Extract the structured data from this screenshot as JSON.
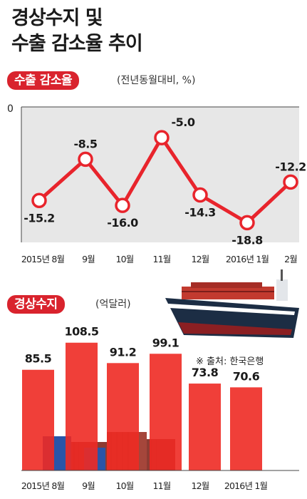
{
  "title_lines": [
    "경상수지 및",
    "수출 감소율 추이"
  ],
  "chart_data": [
    {
      "type": "line",
      "title": "수출 감소율",
      "unit": "(전년동월대비, %)",
      "categories": [
        "2015년 8월",
        "9월",
        "10월",
        "11월",
        "12월",
        "2016년 1월",
        "2월"
      ],
      "values": [
        -15.2,
        -8.5,
        -16.0,
        -5.0,
        -14.3,
        -18.8,
        -12.2
      ],
      "labels": [
        "-15.2",
        "-8.5",
        "-16.0",
        "-5.0",
        "-14.3",
        "-18.8",
        "-12.2"
      ],
      "y_zero_label": "0",
      "ylim": [
        -22,
        0
      ],
      "line_color": "#e8242c",
      "marker_color": "#ffffff"
    },
    {
      "type": "bar",
      "title": "경상수지",
      "unit": "(억달러)",
      "categories": [
        "2015년 8월",
        "9월",
        "10월",
        "11월",
        "12월",
        "2016년 1월"
      ],
      "values": [
        85.5,
        108.5,
        91.2,
        99.1,
        73.8,
        70.6
      ],
      "labels": [
        "85.5",
        "108.5",
        "91.2",
        "99.1",
        "73.8",
        "70.6"
      ],
      "ylim": [
        0,
        115
      ],
      "bar_color": "#ee2a24"
    }
  ],
  "source_note": "※ 출처: 한국은행",
  "decor": {
    "ship_icon": "cargo-ship-icon",
    "containers_icon": "containers-icon"
  }
}
